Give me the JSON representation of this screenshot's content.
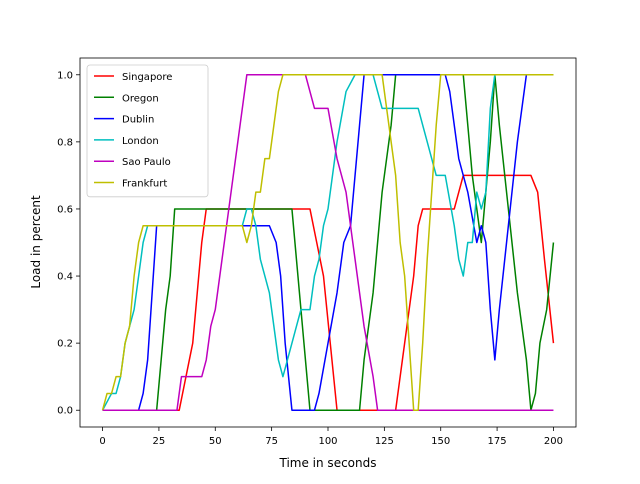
{
  "chart_data": {
    "type": "line",
    "title": "",
    "xlabel": "Time in seconds",
    "ylabel": "Load in percent",
    "xlim": [
      -10,
      210
    ],
    "ylim": [
      -0.05,
      1.05
    ],
    "xticks": [
      0,
      25,
      50,
      75,
      100,
      125,
      150,
      175,
      200
    ],
    "yticks": [
      0.0,
      0.2,
      0.4,
      0.6,
      0.8,
      1.0
    ],
    "xtick_labels": [
      "0",
      "25",
      "50",
      "75",
      "100",
      "125",
      "150",
      "175",
      "200"
    ],
    "ytick_labels": [
      "0.0",
      "0.2",
      "0.4",
      "0.6",
      "0.8",
      "1.0"
    ],
    "grid": false,
    "legend_position": "upper-left",
    "series": [
      {
        "name": "Singapore",
        "color": "#ff0000",
        "x": [
          0,
          34,
          37,
          40,
          42,
          44,
          46,
          48,
          88,
          92,
          95,
          98,
          101,
          104,
          108,
          112,
          116,
          120,
          123,
          130,
          134,
          138,
          140,
          142,
          144,
          148,
          152,
          156,
          160,
          164,
          168,
          172,
          176,
          180,
          184,
          188,
          190,
          193,
          196,
          200
        ],
        "y": [
          0,
          0,
          0.1,
          0.2,
          0.35,
          0.5,
          0.6,
          0.6,
          0.6,
          0.6,
          0.5,
          0.4,
          0.2,
          0,
          0,
          0,
          0,
          0,
          0,
          0,
          0.2,
          0.4,
          0.55,
          0.6,
          0.6,
          0.6,
          0.6,
          0.6,
          0.7,
          0.7,
          0.7,
          0.7,
          0.7,
          0.7,
          0.7,
          0.7,
          0.7,
          0.65,
          0.45,
          0.2
        ]
      },
      {
        "name": "Oregon",
        "color": "#008000",
        "x": [
          0,
          24,
          26,
          28,
          30,
          32,
          34,
          36,
          40,
          44,
          48,
          52,
          56,
          60,
          64,
          68,
          72,
          76,
          80,
          84,
          86,
          88,
          90,
          92,
          95,
          100,
          105,
          108,
          110,
          112,
          114,
          116,
          120,
          124,
          128,
          130,
          134,
          140,
          146,
          150,
          155,
          160,
          164,
          168,
          172,
          174,
          176,
          180,
          184,
          188,
          190,
          192,
          194,
          197,
          200
        ],
        "y": [
          0,
          0,
          0.15,
          0.3,
          0.4,
          0.6,
          0.6,
          0.6,
          0.6,
          0.6,
          0.6,
          0.6,
          0.6,
          0.6,
          0.6,
          0.6,
          0.6,
          0.6,
          0.6,
          0.6,
          0.45,
          0.3,
          0.15,
          0,
          0,
          0,
          0,
          0,
          0,
          0,
          0,
          0.15,
          0.35,
          0.65,
          0.85,
          1.0,
          1.0,
          1.0,
          1.0,
          1.0,
          1.0,
          1.0,
          0.7,
          0.5,
          0.8,
          1.0,
          0.85,
          0.6,
          0.35,
          0.15,
          0,
          0.05,
          0.2,
          0.3,
          0.5
        ]
      },
      {
        "name": "Dublin",
        "color": "#0000ff",
        "x": [
          0,
          16,
          18,
          20,
          22,
          24,
          28,
          32,
          40,
          50,
          60,
          65,
          70,
          74,
          77,
          79,
          81,
          84,
          88,
          92,
          94,
          96,
          100,
          104,
          107,
          110,
          112,
          114,
          116,
          118,
          120,
          124,
          128,
          132,
          140,
          150,
          152,
          154,
          158,
          162,
          166,
          168,
          170,
          172,
          174,
          176,
          180,
          184,
          188,
          190,
          195,
          200
        ],
        "y": [
          0,
          0,
          0.05,
          0.15,
          0.35,
          0.55,
          0.55,
          0.55,
          0.55,
          0.55,
          0.55,
          0.55,
          0.55,
          0.55,
          0.5,
          0.4,
          0.2,
          0,
          0,
          0,
          0,
          0.05,
          0.2,
          0.35,
          0.5,
          0.55,
          0.7,
          0.85,
          1.0,
          1.0,
          1.0,
          1.0,
          1.0,
          1.0,
          1.0,
          1.0,
          1.0,
          0.95,
          0.75,
          0.65,
          0.5,
          0.55,
          0.5,
          0.3,
          0.15,
          0.3,
          0.55,
          0.8,
          1.0,
          1.0,
          1.0,
          1.0
        ]
      },
      {
        "name": "London",
        "color": "#00bfbf",
        "x": [
          0,
          4,
          6,
          8,
          10,
          12,
          14,
          16,
          18,
          20,
          30,
          40,
          50,
          60,
          62,
          64,
          66,
          68,
          70,
          72,
          74,
          76,
          78,
          80,
          82,
          84,
          86,
          88,
          90,
          92,
          94,
          96,
          98,
          100,
          104,
          108,
          112,
          116,
          120,
          124,
          128,
          132,
          136,
          140,
          144,
          148,
          152,
          156,
          158,
          160,
          162,
          164,
          166,
          168,
          170,
          172,
          174,
          178,
          182,
          186,
          190,
          195,
          200
        ],
        "y": [
          0,
          0.05,
          0.05,
          0.1,
          0.2,
          0.25,
          0.3,
          0.4,
          0.5,
          0.55,
          0.55,
          0.55,
          0.55,
          0.55,
          0.55,
          0.6,
          0.6,
          0.55,
          0.45,
          0.4,
          0.35,
          0.25,
          0.15,
          0.1,
          0.15,
          0.2,
          0.25,
          0.3,
          0.3,
          0.3,
          0.4,
          0.45,
          0.55,
          0.6,
          0.8,
          0.95,
          1.0,
          1.0,
          1.0,
          0.9,
          0.9,
          0.9,
          0.9,
          0.9,
          0.8,
          0.7,
          0.7,
          0.55,
          0.45,
          0.4,
          0.5,
          0.5,
          0.65,
          0.6,
          0.65,
          0.9,
          1.0,
          1.0,
          1.0,
          1.0,
          1.0,
          1.0,
          1.0
        ]
      },
      {
        "name": "Sao Paulo",
        "color": "#bf00bf",
        "x": [
          0,
          33,
          35,
          38,
          41,
          44,
          46,
          48,
          50,
          53,
          56,
          60,
          64,
          68,
          72,
          76,
          80,
          86,
          88,
          90,
          94,
          98,
          100,
          104,
          108,
          112,
          116,
          120,
          122,
          124,
          128,
          132,
          140,
          150,
          160,
          170,
          180,
          190,
          200
        ],
        "y": [
          0,
          0,
          0.1,
          0.1,
          0.1,
          0.1,
          0.15,
          0.25,
          0.3,
          0.45,
          0.6,
          0.8,
          1.0,
          1.0,
          1.0,
          1.0,
          1.0,
          1.0,
          1.0,
          1.0,
          0.9,
          0.9,
          0.9,
          0.75,
          0.65,
          0.45,
          0.25,
          0.1,
          0,
          0,
          0,
          0,
          0,
          0,
          0,
          0,
          0,
          0,
          0
        ]
      },
      {
        "name": "Frankfurt",
        "color": "#bfbf00",
        "x": [
          0,
          2,
          4,
          6,
          8,
          10,
          12,
          14,
          16,
          18,
          20,
          30,
          40,
          50,
          60,
          62,
          64,
          66,
          68,
          70,
          72,
          74,
          76,
          78,
          80,
          90,
          100,
          110,
          120,
          124,
          126,
          128,
          130,
          132,
          134,
          136,
          138,
          140,
          142,
          144,
          146,
          148,
          150,
          152,
          160,
          170,
          180,
          190,
          200
        ],
        "y": [
          0,
          0.05,
          0.05,
          0.1,
          0.1,
          0.2,
          0.25,
          0.4,
          0.5,
          0.55,
          0.55,
          0.55,
          0.55,
          0.55,
          0.55,
          0.55,
          0.5,
          0.55,
          0.65,
          0.65,
          0.75,
          0.75,
          0.85,
          0.95,
          1.0,
          1.0,
          1.0,
          1.0,
          1.0,
          1.0,
          0.9,
          0.8,
          0.7,
          0.5,
          0.4,
          0.2,
          0,
          0,
          0.2,
          0.45,
          0.65,
          0.85,
          1.0,
          1.0,
          1.0,
          1.0,
          1.0,
          1.0,
          1.0
        ]
      }
    ]
  }
}
